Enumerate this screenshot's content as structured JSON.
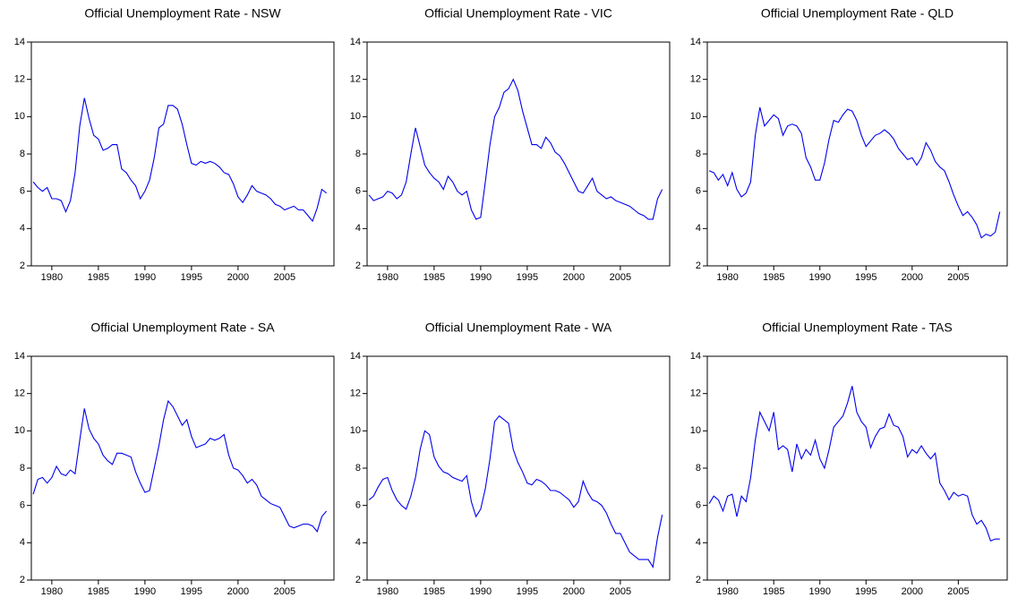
{
  "chart_data": [
    {
      "type": "line",
      "title": "Official Unemployment Rate - NSW",
      "color": "#0000ee",
      "xlim": [
        1977.8,
        2010.3
      ],
      "xticks": [
        1980,
        1985,
        1990,
        1995,
        2000,
        2005
      ],
      "ylim": [
        2,
        14
      ],
      "yticks": [
        2,
        4,
        6,
        8,
        10,
        12,
        14
      ],
      "grid": false,
      "x": [
        1978,
        1978.5,
        1979,
        1979.5,
        1980,
        1980.5,
        1981,
        1981.5,
        1982,
        1982.5,
        1983,
        1983.5,
        1984,
        1984.5,
        1985,
        1985.5,
        1986,
        1986.5,
        1987,
        1987.5,
        1988,
        1988.5,
        1989,
        1989.5,
        1990,
        1990.5,
        1991,
        1991.5,
        1992,
        1992.5,
        1993,
        1993.5,
        1994,
        1994.5,
        1995,
        1995.5,
        1996,
        1996.5,
        1997,
        1997.5,
        1998,
        1998.5,
        1999,
        1999.5,
        2000,
        2000.5,
        2001,
        2001.5,
        2002,
        2002.5,
        2003,
        2003.5,
        2004,
        2004.5,
        2005,
        2005.5,
        2006,
        2006.5,
        2007,
        2007.5,
        2008,
        2008.5,
        2009,
        2009.5
      ],
      "values": [
        6.5,
        6.2,
        6.0,
        6.2,
        5.6,
        5.6,
        5.5,
        4.9,
        5.5,
        7.0,
        9.5,
        11.0,
        9.9,
        9.0,
        8.8,
        8.2,
        8.3,
        8.5,
        8.5,
        7.2,
        7.0,
        6.6,
        6.3,
        5.6,
        6.0,
        6.6,
        7.8,
        9.4,
        9.6,
        10.6,
        10.6,
        10.4,
        9.6,
        8.5,
        7.5,
        7.4,
        7.6,
        7.5,
        7.6,
        7.5,
        7.3,
        7.0,
        6.9,
        6.4,
        5.7,
        5.4,
        5.8,
        6.3,
        6.0,
        5.9,
        5.8,
        5.6,
        5.3,
        5.2,
        5.0,
        5.1,
        5.2,
        5.0,
        5.0,
        4.7,
        4.4,
        5.1,
        6.1,
        5.9
      ]
    },
    {
      "type": "line",
      "title": "Official Unemployment Rate - VIC",
      "color": "#0000ee",
      "xlim": [
        1977.8,
        2010.3
      ],
      "xticks": [
        1980,
        1985,
        1990,
        1995,
        2000,
        2005
      ],
      "ylim": [
        2,
        14
      ],
      "yticks": [
        2,
        4,
        6,
        8,
        10,
        12,
        14
      ],
      "grid": false,
      "x": [
        1978,
        1978.5,
        1979,
        1979.5,
        1980,
        1980.5,
        1981,
        1981.5,
        1982,
        1982.5,
        1983,
        1983.5,
        1984,
        1984.5,
        1985,
        1985.5,
        1986,
        1986.5,
        1987,
        1987.5,
        1988,
        1988.5,
        1989,
        1989.5,
        1990,
        1990.5,
        1991,
        1991.5,
        1992,
        1992.5,
        1993,
        1993.5,
        1994,
        1994.5,
        1995,
        1995.5,
        1996,
        1996.5,
        1997,
        1997.5,
        1998,
        1998.5,
        1999,
        1999.5,
        2000,
        2000.5,
        2001,
        2001.5,
        2002,
        2002.5,
        2003,
        2003.5,
        2004,
        2004.5,
        2005,
        2005.5,
        2006,
        2006.5,
        2007,
        2007.5,
        2008,
        2008.5,
        2009,
        2009.5
      ],
      "values": [
        5.8,
        5.5,
        5.6,
        5.7,
        6.0,
        5.9,
        5.6,
        5.8,
        6.5,
        8.0,
        9.4,
        8.4,
        7.4,
        7.0,
        6.7,
        6.5,
        6.1,
        6.8,
        6.5,
        6.0,
        5.8,
        6.0,
        5.0,
        4.5,
        4.6,
        6.5,
        8.5,
        10.0,
        10.5,
        11.3,
        11.5,
        12.0,
        11.4,
        10.3,
        9.4,
        8.5,
        8.5,
        8.3,
        8.9,
        8.6,
        8.1,
        7.9,
        7.5,
        7.0,
        6.5,
        6.0,
        5.9,
        6.3,
        6.7,
        6.0,
        5.8,
        5.6,
        5.7,
        5.5,
        5.4,
        5.3,
        5.2,
        5.0,
        4.8,
        4.7,
        4.5,
        4.5,
        5.6,
        6.1
      ]
    },
    {
      "type": "line",
      "title": "Official Unemployment Rate - QLD",
      "color": "#0000ee",
      "xlim": [
        1977.8,
        2010.3
      ],
      "xticks": [
        1980,
        1985,
        1990,
        1995,
        2000,
        2005
      ],
      "ylim": [
        2,
        14
      ],
      "yticks": [
        2,
        4,
        6,
        8,
        10,
        12,
        14
      ],
      "grid": false,
      "x": [
        1978,
        1978.5,
        1979,
        1979.5,
        1980,
        1980.5,
        1981,
        1981.5,
        1982,
        1982.5,
        1983,
        1983.5,
        1984,
        1984.5,
        1985,
        1985.5,
        1986,
        1986.5,
        1987,
        1987.5,
        1988,
        1988.5,
        1989,
        1989.5,
        1990,
        1990.5,
        1991,
        1991.5,
        1992,
        1992.5,
        1993,
        1993.5,
        1994,
        1994.5,
        1995,
        1995.5,
        1996,
        1996.5,
        1997,
        1997.5,
        1998,
        1998.5,
        1999,
        1999.5,
        2000,
        2000.5,
        2001,
        2001.5,
        2002,
        2002.5,
        2003,
        2003.5,
        2004,
        2004.5,
        2005,
        2005.5,
        2006,
        2006.5,
        2007,
        2007.5,
        2008,
        2008.5,
        2009,
        2009.5
      ],
      "values": [
        7.1,
        7.0,
        6.6,
        6.9,
        6.3,
        7.0,
        6.1,
        5.7,
        5.9,
        6.5,
        9.0,
        10.5,
        9.5,
        9.8,
        10.1,
        9.9,
        9.0,
        9.5,
        9.6,
        9.5,
        9.1,
        7.8,
        7.3,
        6.6,
        6.6,
        7.5,
        8.8,
        9.8,
        9.7,
        10.1,
        10.4,
        10.3,
        9.8,
        9.0,
        8.4,
        8.7,
        9.0,
        9.1,
        9.3,
        9.1,
        8.8,
        8.3,
        8.0,
        7.7,
        7.8,
        7.4,
        7.8,
        8.6,
        8.2,
        7.6,
        7.3,
        7.1,
        6.5,
        5.8,
        5.2,
        4.7,
        4.9,
        4.6,
        4.2,
        3.5,
        3.7,
        3.6,
        3.8,
        4.9
      ]
    },
    {
      "type": "line",
      "title": "Official Unemployment Rate - SA",
      "color": "#0000ee",
      "xlim": [
        1977.8,
        2010.3
      ],
      "xticks": [
        1980,
        1985,
        1990,
        1995,
        2000,
        2005
      ],
      "ylim": [
        2,
        14
      ],
      "yticks": [
        2,
        4,
        6,
        8,
        10,
        12,
        14
      ],
      "grid": false,
      "x": [
        1978,
        1978.5,
        1979,
        1979.5,
        1980,
        1980.5,
        1981,
        1981.5,
        1982,
        1982.5,
        1983,
        1983.5,
        1984,
        1984.5,
        1985,
        1985.5,
        1986,
        1986.5,
        1987,
        1987.5,
        1988,
        1988.5,
        1989,
        1989.5,
        1990,
        1990.5,
        1991,
        1991.5,
        1992,
        1992.5,
        1993,
        1993.5,
        1994,
        1994.5,
        1995,
        1995.5,
        1996,
        1996.5,
        1997,
        1997.5,
        1998,
        1998.5,
        1999,
        1999.5,
        2000,
        2000.5,
        2001,
        2001.5,
        2002,
        2002.5,
        2003,
        2003.5,
        2004,
        2004.5,
        2005,
        2005.5,
        2006,
        2006.5,
        2007,
        2007.5,
        2008,
        2008.5,
        2009,
        2009.5
      ],
      "values": [
        6.6,
        7.4,
        7.5,
        7.2,
        7.5,
        8.1,
        7.7,
        7.6,
        7.9,
        7.7,
        9.5,
        11.2,
        10.1,
        9.6,
        9.3,
        8.7,
        8.4,
        8.2,
        8.8,
        8.8,
        8.7,
        8.6,
        7.8,
        7.2,
        6.7,
        6.8,
        8.0,
        9.2,
        10.6,
        11.6,
        11.3,
        10.8,
        10.3,
        10.6,
        9.7,
        9.1,
        9.2,
        9.3,
        9.6,
        9.5,
        9.6,
        9.8,
        8.7,
        8.0,
        7.9,
        7.6,
        7.2,
        7.4,
        7.1,
        6.5,
        6.3,
        6.1,
        6.0,
        5.9,
        5.4,
        4.9,
        4.8,
        4.9,
        5.0,
        5.0,
        4.9,
        4.6,
        5.4,
        5.7
      ]
    },
    {
      "type": "line",
      "title": "Official Unemployment Rate - WA",
      "color": "#0000ee",
      "xlim": [
        1977.8,
        2010.3
      ],
      "xticks": [
        1980,
        1985,
        1990,
        1995,
        2000,
        2005
      ],
      "ylim": [
        2,
        14
      ],
      "yticks": [
        2,
        4,
        6,
        8,
        10,
        12,
        14
      ],
      "grid": false,
      "x": [
        1978,
        1978.5,
        1979,
        1979.5,
        1980,
        1980.5,
        1981,
        1981.5,
        1982,
        1982.5,
        1983,
        1983.5,
        1984,
        1984.5,
        1985,
        1985.5,
        1986,
        1986.5,
        1987,
        1987.5,
        1988,
        1988.5,
        1989,
        1989.5,
        1990,
        1990.5,
        1991,
        1991.5,
        1992,
        1992.5,
        1993,
        1993.5,
        1994,
        1994.5,
        1995,
        1995.5,
        1996,
        1996.5,
        1997,
        1997.5,
        1998,
        1998.5,
        1999,
        1999.5,
        2000,
        2000.5,
        2001,
        2001.5,
        2002,
        2002.5,
        2003,
        2003.5,
        2004,
        2004.5,
        2005,
        2005.5,
        2006,
        2006.5,
        2007,
        2007.5,
        2008,
        2008.5,
        2009,
        2009.5
      ],
      "values": [
        6.3,
        6.5,
        7.0,
        7.4,
        7.5,
        6.8,
        6.3,
        6.0,
        5.8,
        6.5,
        7.5,
        9.0,
        10.0,
        9.8,
        8.6,
        8.1,
        7.8,
        7.7,
        7.5,
        7.4,
        7.3,
        7.6,
        6.2,
        5.4,
        5.8,
        6.9,
        8.5,
        10.5,
        10.8,
        10.6,
        10.4,
        9.0,
        8.3,
        7.8,
        7.2,
        7.1,
        7.4,
        7.3,
        7.1,
        6.8,
        6.8,
        6.7,
        6.5,
        6.3,
        5.9,
        6.2,
        7.3,
        6.7,
        6.3,
        6.2,
        6.0,
        5.6,
        5.0,
        4.5,
        4.5,
        4.0,
        3.5,
        3.3,
        3.1,
        3.1,
        3.1,
        2.7,
        4.3,
        5.5
      ]
    },
    {
      "type": "line",
      "title": "Official Unemployment Rate - TAS",
      "color": "#0000ee",
      "xlim": [
        1977.8,
        2010.3
      ],
      "xticks": [
        1980,
        1985,
        1990,
        1995,
        2000,
        2005
      ],
      "ylim": [
        2,
        14
      ],
      "yticks": [
        2,
        4,
        6,
        8,
        10,
        12,
        14
      ],
      "grid": false,
      "x": [
        1978,
        1978.5,
        1979,
        1979.5,
        1980,
        1980.5,
        1981,
        1981.5,
        1982,
        1982.5,
        1983,
        1983.5,
        1984,
        1984.5,
        1985,
        1985.5,
        1986,
        1986.5,
        1987,
        1987.5,
        1988,
        1988.5,
        1989,
        1989.5,
        1990,
        1990.5,
        1991,
        1991.5,
        1992,
        1992.5,
        1993,
        1993.5,
        1994,
        1994.5,
        1995,
        1995.5,
        1996,
        1996.5,
        1997,
        1997.5,
        1998,
        1998.5,
        1999,
        1999.5,
        2000,
        2000.5,
        2001,
        2001.5,
        2002,
        2002.5,
        2003,
        2003.5,
        2004,
        2004.5,
        2005,
        2005.5,
        2006,
        2006.5,
        2007,
        2007.5,
        2008,
        2008.5,
        2009,
        2009.5
      ],
      "values": [
        6.1,
        6.5,
        6.3,
        5.7,
        6.5,
        6.6,
        5.4,
        6.5,
        6.2,
        7.5,
        9.5,
        11.0,
        10.5,
        10.0,
        11.0,
        9.0,
        9.2,
        9.0,
        7.8,
        9.3,
        8.5,
        9.0,
        8.7,
        9.5,
        8.5,
        8.0,
        9.0,
        10.2,
        10.5,
        10.8,
        11.5,
        12.4,
        11.0,
        10.5,
        10.2,
        9.1,
        9.7,
        10.1,
        10.2,
        10.9,
        10.3,
        10.2,
        9.7,
        8.6,
        9.0,
        8.8,
        9.2,
        8.8,
        8.5,
        8.8,
        7.2,
        6.8,
        6.3,
        6.7,
        6.5,
        6.6,
        6.5,
        5.5,
        5.0,
        5.2,
        4.8,
        4.1,
        4.2,
        4.2
      ]
    }
  ]
}
